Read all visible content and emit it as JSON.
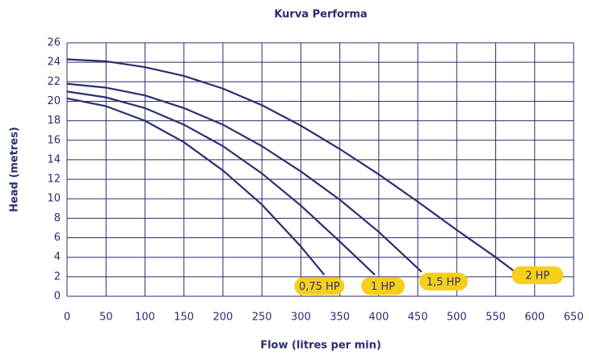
{
  "chart_data": {
    "type": "line",
    "title": "Kurva Performa",
    "xlabel": "Flow (litres per min)",
    "ylabel": "Head (metres)",
    "xlim": [
      0,
      650
    ],
    "xticks": [
      0,
      50,
      100,
      150,
      200,
      250,
      300,
      350,
      400,
      450,
      500,
      550,
      600,
      650
    ],
    "ylim": [
      0,
      26
    ],
    "yticks": [
      0,
      2,
      4,
      6,
      8,
      10,
      12,
      14,
      16,
      18,
      20,
      22,
      24,
      26
    ],
    "grid": true,
    "series": [
      {
        "name": "0,75 HP",
        "color": "#2b2e6e",
        "x": [
          0,
          50,
          100,
          150,
          200,
          250,
          300,
          330
        ],
        "values": [
          20.3,
          19.5,
          18,
          15.8,
          12.9,
          9.4,
          5.1,
          2.2
        ]
      },
      {
        "name": "1 HP",
        "color": "#2b2e6e",
        "x": [
          0,
          50,
          100,
          150,
          200,
          250,
          300,
          350,
          395
        ],
        "values": [
          21,
          20.4,
          19.3,
          17.6,
          15.4,
          12.6,
          9.3,
          5.6,
          2.2
        ]
      },
      {
        "name": "1,5 HP",
        "color": "#2b2e6e",
        "x": [
          0,
          50,
          100,
          150,
          200,
          250,
          300,
          350,
          400,
          455
        ],
        "values": [
          21.8,
          21.4,
          20.6,
          19.3,
          17.6,
          15.4,
          12.8,
          9.9,
          6.6,
          2.5
        ]
      },
      {
        "name": "2 HP",
        "color": "#2b2e6e",
        "x": [
          0,
          50,
          100,
          150,
          200,
          250,
          300,
          350,
          400,
          450,
          500,
          550,
          585
        ],
        "values": [
          24.3,
          24.1,
          23.5,
          22.6,
          21.3,
          19.6,
          17.5,
          15.1,
          12.5,
          9.7,
          6.8,
          4,
          1.9
        ]
      }
    ]
  }
}
